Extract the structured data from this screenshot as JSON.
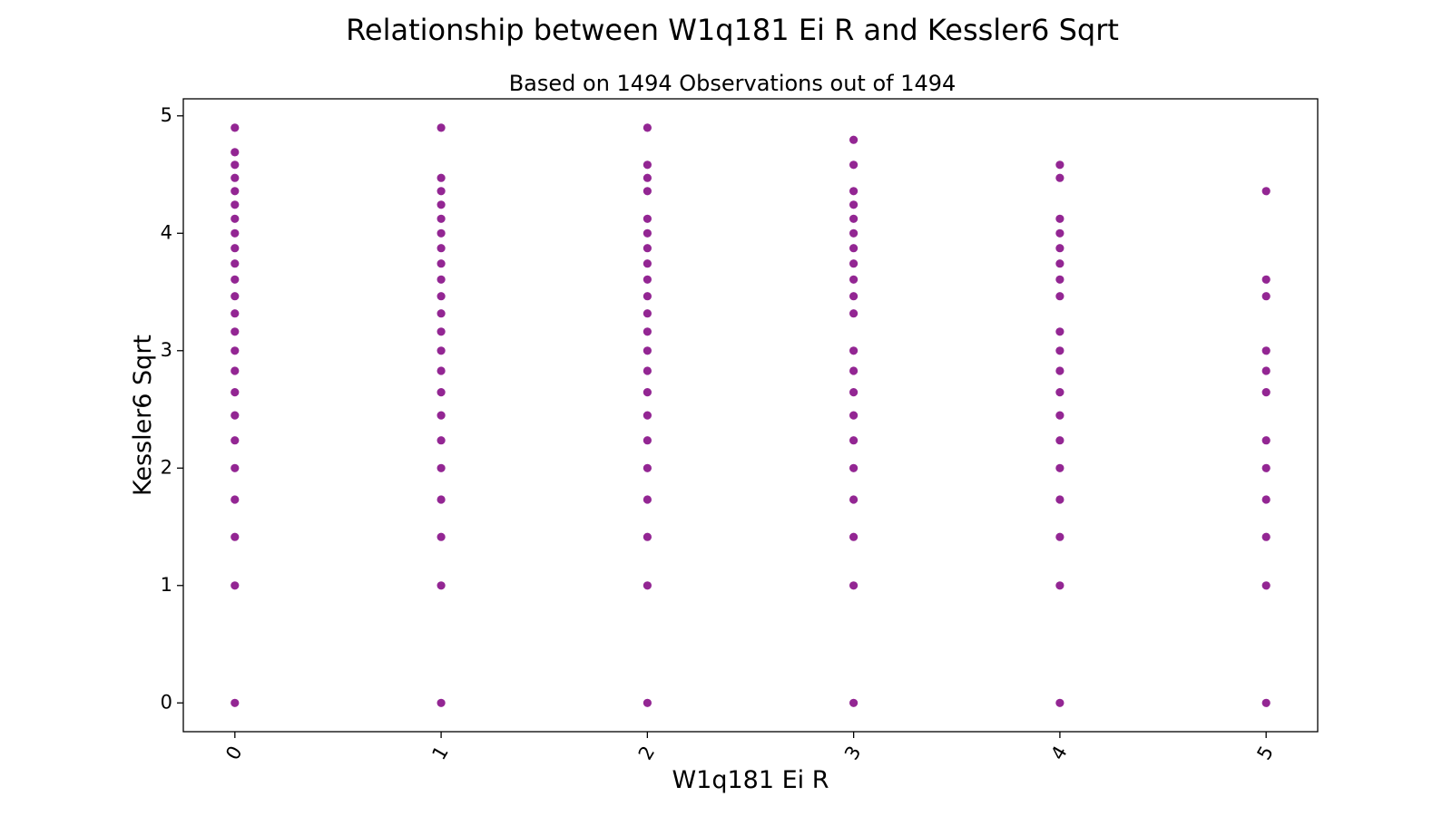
{
  "chart_data": {
    "type": "scatter",
    "title": "Relationship between W1q181 Ei R and Kessler6 Sqrt",
    "subtitle": "Based on 1494 Observations out of 1494",
    "xlabel": "W1q181 Ei R",
    "ylabel": "Kessler6 Sqrt",
    "xlim": [
      -0.25,
      5.25
    ],
    "ylim": [
      -0.245,
      5.145
    ],
    "x_ticks": [
      0,
      1,
      2,
      3,
      4,
      5
    ],
    "y_ticks": [
      0,
      1,
      2,
      3,
      4,
      5
    ],
    "grid": false,
    "marker_color": "#800080",
    "series": [
      {
        "points": [
          [
            0,
            0
          ],
          [
            0,
            1
          ],
          [
            0,
            1.414
          ],
          [
            0,
            1.732
          ],
          [
            0,
            2
          ],
          [
            0,
            2.236
          ],
          [
            0,
            2.449
          ],
          [
            0,
            2.646
          ],
          [
            0,
            2.828
          ],
          [
            0,
            3
          ],
          [
            0,
            3.162
          ],
          [
            0,
            3.317
          ],
          [
            0,
            3.464
          ],
          [
            0,
            3.606
          ],
          [
            0,
            3.742
          ],
          [
            0,
            3.873
          ],
          [
            0,
            4
          ],
          [
            0,
            4.123
          ],
          [
            0,
            4.243
          ],
          [
            0,
            4.359
          ],
          [
            0,
            4.472
          ],
          [
            0,
            4.583
          ],
          [
            0,
            4.69
          ],
          [
            0,
            4.899
          ],
          [
            1,
            0
          ],
          [
            1,
            1
          ],
          [
            1,
            1.414
          ],
          [
            1,
            1.732
          ],
          [
            1,
            2
          ],
          [
            1,
            2.236
          ],
          [
            1,
            2.449
          ],
          [
            1,
            2.646
          ],
          [
            1,
            2.828
          ],
          [
            1,
            3
          ],
          [
            1,
            3.162
          ],
          [
            1,
            3.317
          ],
          [
            1,
            3.464
          ],
          [
            1,
            3.606
          ],
          [
            1,
            3.742
          ],
          [
            1,
            3.873
          ],
          [
            1,
            4
          ],
          [
            1,
            4.123
          ],
          [
            1,
            4.243
          ],
          [
            1,
            4.359
          ],
          [
            1,
            4.472
          ],
          [
            1,
            4.899
          ],
          [
            2,
            0
          ],
          [
            2,
            1
          ],
          [
            2,
            1.414
          ],
          [
            2,
            1.732
          ],
          [
            2,
            2
          ],
          [
            2,
            2.236
          ],
          [
            2,
            2.449
          ],
          [
            2,
            2.646
          ],
          [
            2,
            2.828
          ],
          [
            2,
            3
          ],
          [
            2,
            3.162
          ],
          [
            2,
            3.317
          ],
          [
            2,
            3.464
          ],
          [
            2,
            3.606
          ],
          [
            2,
            3.742
          ],
          [
            2,
            3.873
          ],
          [
            2,
            4
          ],
          [
            2,
            4.123
          ],
          [
            2,
            4.359
          ],
          [
            2,
            4.472
          ],
          [
            2,
            4.583
          ],
          [
            2,
            4.899
          ],
          [
            3,
            0
          ],
          [
            3,
            1
          ],
          [
            3,
            1.414
          ],
          [
            3,
            1.732
          ],
          [
            3,
            2
          ],
          [
            3,
            2.236
          ],
          [
            3,
            2.449
          ],
          [
            3,
            2.646
          ],
          [
            3,
            2.828
          ],
          [
            3,
            3
          ],
          [
            3,
            3.317
          ],
          [
            3,
            3.464
          ],
          [
            3,
            3.606
          ],
          [
            3,
            3.742
          ],
          [
            3,
            3.873
          ],
          [
            3,
            4
          ],
          [
            3,
            4.123
          ],
          [
            3,
            4.243
          ],
          [
            3,
            4.359
          ],
          [
            3,
            4.583
          ],
          [
            3,
            4.796
          ],
          [
            4,
            0
          ],
          [
            4,
            1
          ],
          [
            4,
            1.414
          ],
          [
            4,
            1.732
          ],
          [
            4,
            2
          ],
          [
            4,
            2.236
          ],
          [
            4,
            2.449
          ],
          [
            4,
            2.646
          ],
          [
            4,
            2.828
          ],
          [
            4,
            3
          ],
          [
            4,
            3.162
          ],
          [
            4,
            3.464
          ],
          [
            4,
            3.606
          ],
          [
            4,
            3.742
          ],
          [
            4,
            3.873
          ],
          [
            4,
            4
          ],
          [
            4,
            4.123
          ],
          [
            4,
            4.472
          ],
          [
            4,
            4.583
          ],
          [
            5,
            0
          ],
          [
            5,
            1
          ],
          [
            5,
            1.414
          ],
          [
            5,
            1.732
          ],
          [
            5,
            2
          ],
          [
            5,
            2.236
          ],
          [
            5,
            2.646
          ],
          [
            5,
            2.828
          ],
          [
            5,
            3
          ],
          [
            5,
            3.464
          ],
          [
            5,
            3.606
          ],
          [
            5,
            4.359
          ]
        ]
      }
    ]
  }
}
